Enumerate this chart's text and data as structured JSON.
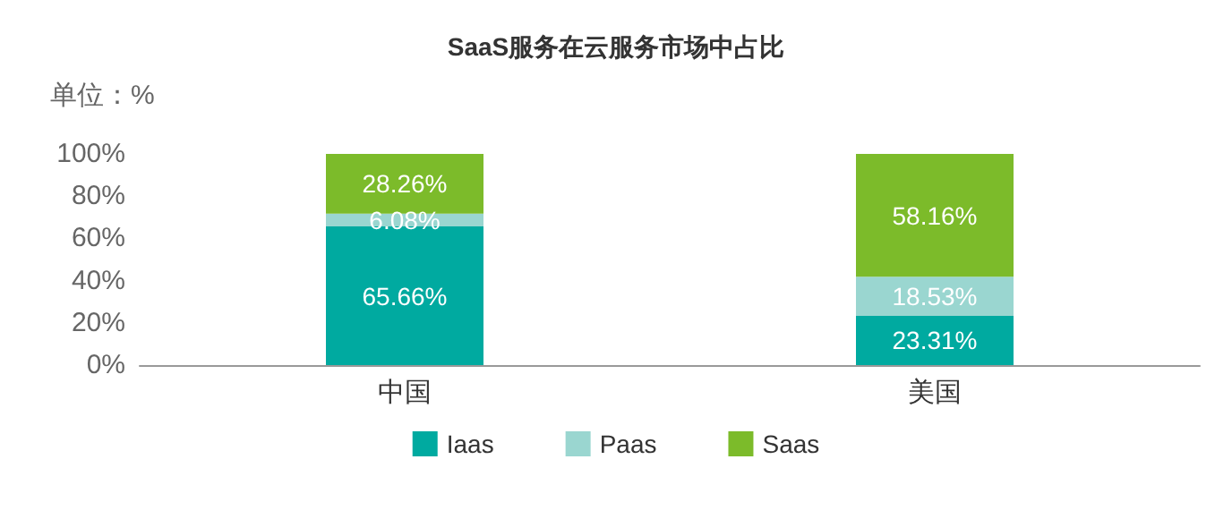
{
  "chart_data": {
    "type": "bar",
    "title": "SaaS服务在云服务市场中占比",
    "ylabel": "单位：%",
    "categories": [
      "中国",
      "美国"
    ],
    "stacked": true,
    "legend": "bottom",
    "grid": false,
    "ylim": [
      0,
      100
    ],
    "yticks": [
      {
        "value": 0,
        "label": "0%"
      },
      {
        "value": 20,
        "label": "20%"
      },
      {
        "value": 40,
        "label": "40%"
      },
      {
        "value": 60,
        "label": "60%"
      },
      {
        "value": 80,
        "label": "80%"
      },
      {
        "value": 100,
        "label": "100%"
      }
    ],
    "series": [
      {
        "name": "Iaas",
        "color": "#00aaa0",
        "values": [
          65.66,
          23.31
        ],
        "value_labels": [
          "65.66%",
          "23.31%"
        ]
      },
      {
        "name": "Paas",
        "color": "#9ad6d0",
        "values": [
          6.08,
          18.53
        ],
        "value_labels": [
          "6.08%",
          "18.53%"
        ]
      },
      {
        "name": "Saas",
        "color": "#7cbb2a",
        "values": [
          28.26,
          58.16
        ],
        "value_labels": [
          "28.26%",
          "58.16%"
        ]
      }
    ]
  }
}
